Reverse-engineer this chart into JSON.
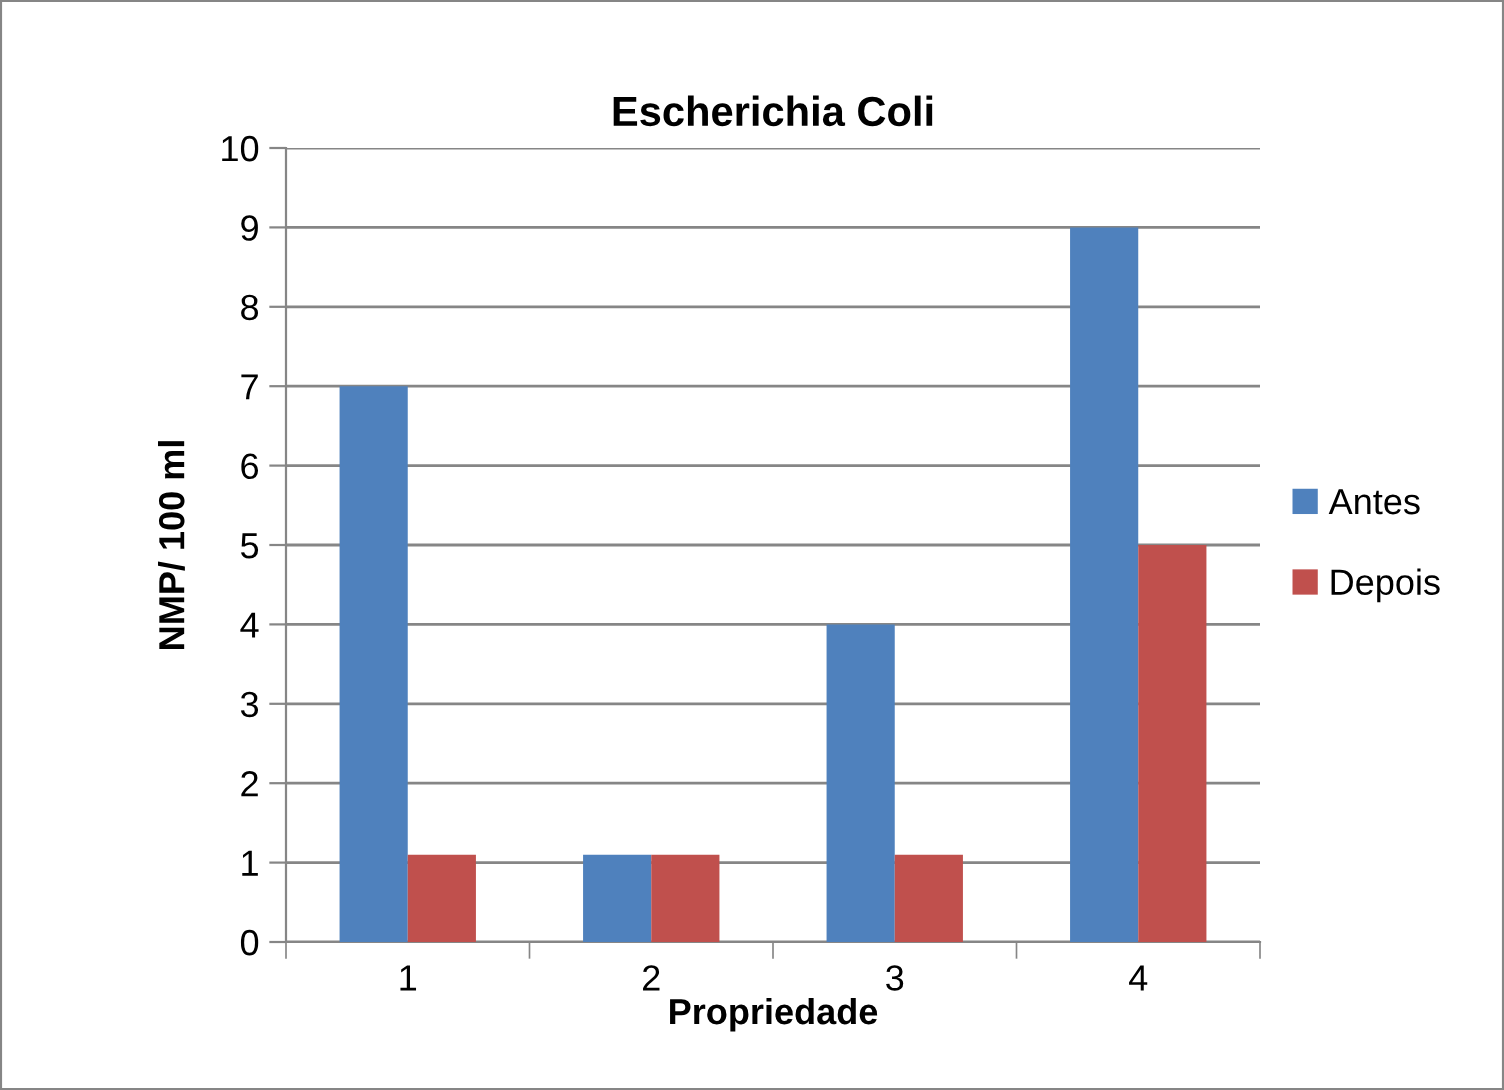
{
  "chart_data": {
    "type": "bar",
    "title": "Escherichia Coli",
    "xlabel": "Propriedade",
    "ylabel": "NMP/ 100 ml",
    "categories": [
      "1",
      "2",
      "3",
      "4"
    ],
    "series": [
      {
        "name": "Antes",
        "color": "#4f81bd",
        "values": [
          7,
          1.1,
          4,
          9
        ]
      },
      {
        "name": "Depois",
        "color": "#c0504d",
        "values": [
          1.1,
          1.1,
          1.1,
          5
        ]
      }
    ],
    "ylim": [
      0,
      10
    ],
    "yticks": [
      0,
      1,
      2,
      3,
      4,
      5,
      6,
      7,
      8,
      9,
      10
    ],
    "grid": "y",
    "legend": "right"
  }
}
